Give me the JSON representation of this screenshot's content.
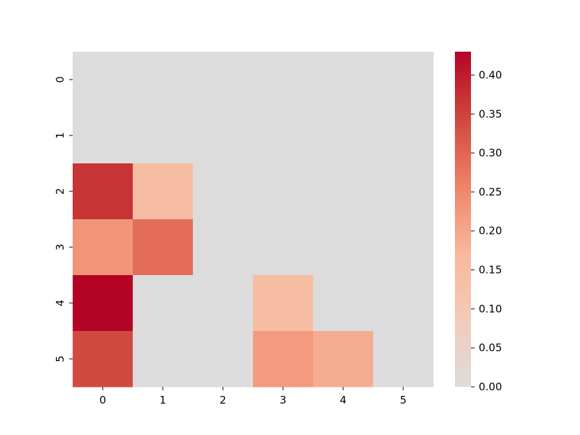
{
  "chart_data": {
    "type": "heatmap",
    "title": "",
    "xlabel": "",
    "ylabel": "",
    "x_categories": [
      "0",
      "1",
      "2",
      "3",
      "4",
      "5"
    ],
    "y_categories": [
      "0",
      "1",
      "2",
      "3",
      "4",
      "5"
    ],
    "values": [
      [
        0,
        0,
        0,
        0,
        0,
        0
      ],
      [
        0,
        0,
        0,
        0,
        0,
        0
      ],
      [
        0.37,
        0.15,
        0,
        0,
        0,
        0
      ],
      [
        0.23,
        0.29,
        0,
        0,
        0,
        0
      ],
      [
        0.43,
        0,
        0,
        0.15,
        0,
        0
      ],
      [
        0.34,
        0,
        0,
        0.22,
        0.19,
        0
      ]
    ],
    "colorbar": {
      "min": 0.0,
      "max": 0.43,
      "ticks": [
        "0.00",
        "0.05",
        "0.10",
        "0.15",
        "0.20",
        "0.25",
        "0.30",
        "0.35",
        "0.40"
      ]
    },
    "colormap": {
      "name": "coolwarm-upper",
      "stops": [
        "#dddcdc",
        "#f2cbb7",
        "#f7b89c",
        "#ee8468",
        "#d0473d",
        "#b40426"
      ]
    }
  }
}
